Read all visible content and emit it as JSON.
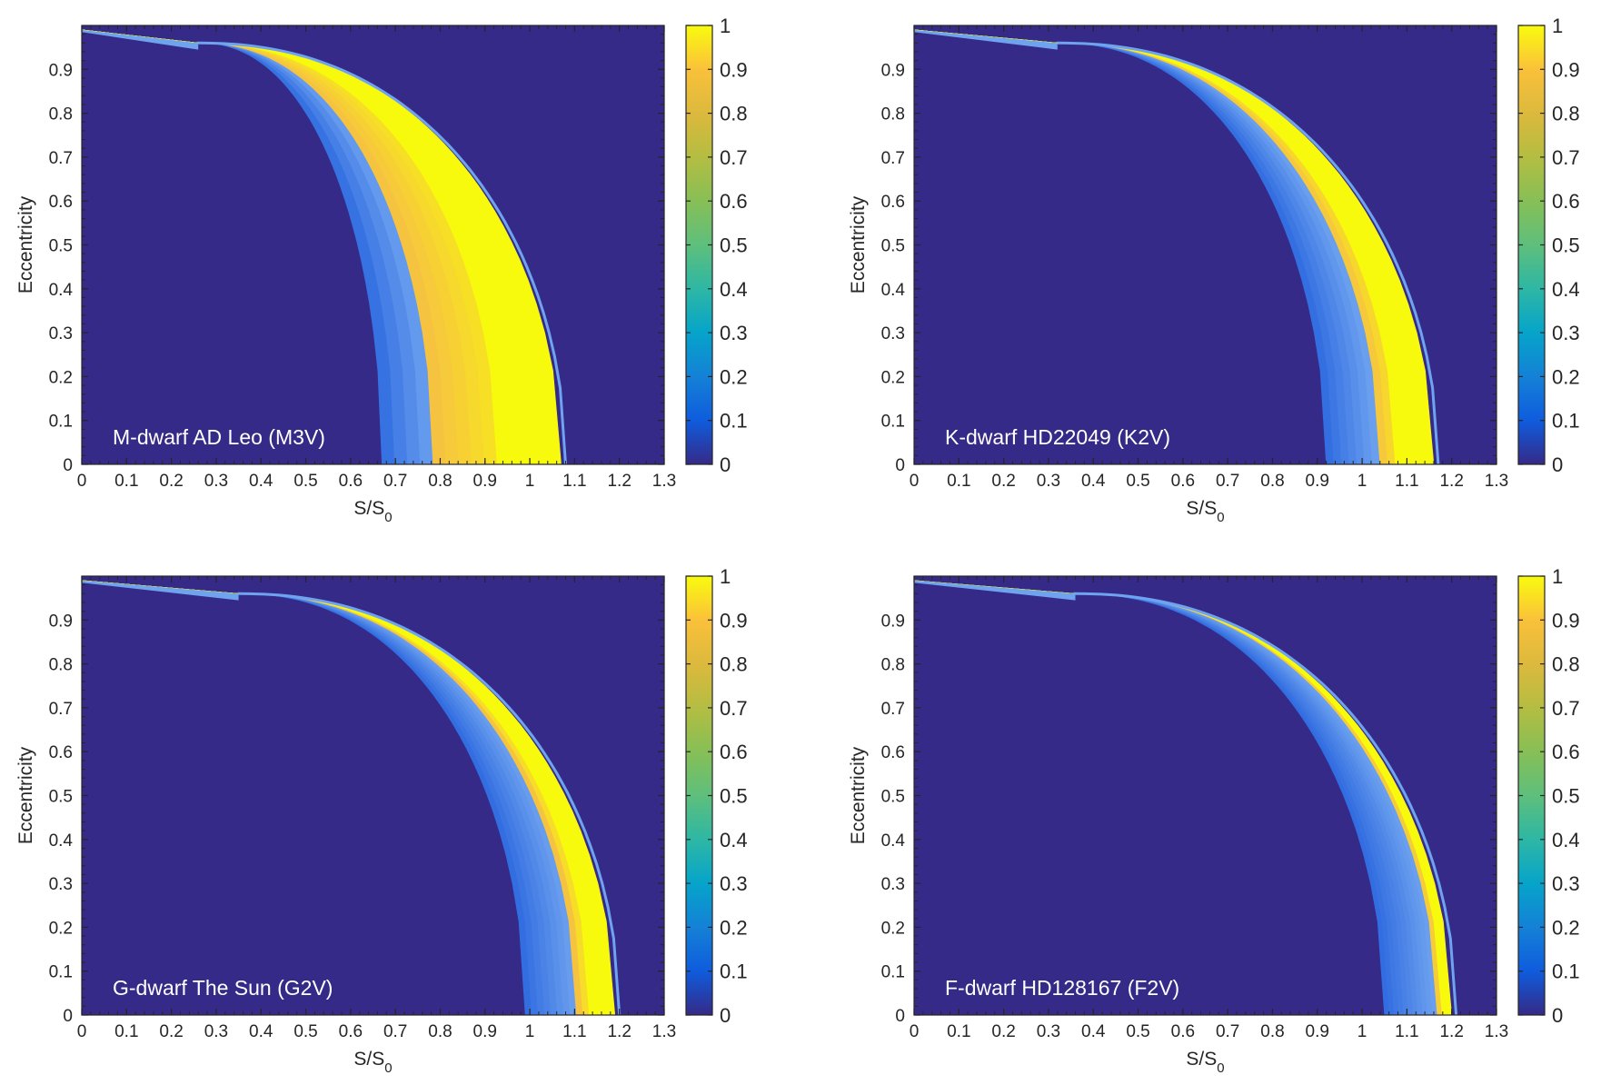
{
  "chart_data": [
    {
      "type": "heatmap",
      "annotation": "M-dwarf AD Leo (M3V)",
      "xlabel": "S/S",
      "xlabel_sub": "0",
      "ylabel": "Eccentricity",
      "xlim": [
        0,
        1.3
      ],
      "ylim": [
        0,
        1
      ],
      "xticks": [
        "0",
        "0.1",
        "0.2",
        "0.3",
        "0.4",
        "0.5",
        "0.6",
        "0.7",
        "0.8",
        "0.9",
        "1",
        "1.1",
        "1.2",
        "1.3"
      ],
      "yticks": [
        "0",
        "0.1",
        "0.2",
        "0.3",
        "0.4",
        "0.5",
        "0.6",
        "0.7",
        "0.8",
        "0.9"
      ],
      "colorbar": {
        "min": 0,
        "max": 1,
        "ticks": [
          "0",
          "0.1",
          "0.2",
          "0.3",
          "0.4",
          "0.5",
          "0.6",
          "0.7",
          "0.8",
          "0.9",
          "1"
        ]
      },
      "region": {
        "outer_s0": 1.07,
        "inner_s0": 0.79,
        "apex": [
          0.26,
          0.96
        ],
        "yellow_start_s0": 0.93
      }
    },
    {
      "type": "heatmap",
      "annotation": "K-dwarf HD22049 (K2V)",
      "xlabel": "S/S",
      "xlabel_sub": "0",
      "ylabel": "Eccentricity",
      "xlim": [
        0,
        1.3
      ],
      "ylim": [
        0,
        1
      ],
      "xticks": [
        "0",
        "0.1",
        "0.2",
        "0.3",
        "0.4",
        "0.5",
        "0.6",
        "0.7",
        "0.8",
        "0.9",
        "1",
        "1.1",
        "1.2",
        "1.3"
      ],
      "yticks": [
        "0",
        "0.1",
        "0.2",
        "0.3",
        "0.4",
        "0.5",
        "0.6",
        "0.7",
        "0.8",
        "0.9"
      ],
      "colorbar": {
        "min": 0,
        "max": 1,
        "ticks": [
          "0",
          "0.1",
          "0.2",
          "0.3",
          "0.4",
          "0.5",
          "0.6",
          "0.7",
          "0.8",
          "0.9",
          "1"
        ]
      },
      "region": {
        "outer_s0": 1.16,
        "inner_s0": 1.04,
        "apex": [
          0.32,
          0.96
        ],
        "yellow_start_s0": 1.08
      }
    },
    {
      "type": "heatmap",
      "annotation": "G-dwarf The Sun (G2V)",
      "xlabel": "S/S",
      "xlabel_sub": "0",
      "ylabel": "Eccentricity",
      "xlim": [
        0,
        1.3
      ],
      "ylim": [
        0,
        1
      ],
      "xticks": [
        "0",
        "0.1",
        "0.2",
        "0.3",
        "0.4",
        "0.5",
        "0.6",
        "0.7",
        "0.8",
        "0.9",
        "1",
        "1.1",
        "1.2",
        "1.3"
      ],
      "yticks": [
        "0",
        "0.1",
        "0.2",
        "0.3",
        "0.4",
        "0.5",
        "0.6",
        "0.7",
        "0.8",
        "0.9"
      ],
      "colorbar": {
        "min": 0,
        "max": 1,
        "ticks": [
          "0",
          "0.1",
          "0.2",
          "0.3",
          "0.4",
          "0.5",
          "0.6",
          "0.7",
          "0.8",
          "0.9",
          "1"
        ]
      },
      "region": {
        "outer_s0": 1.19,
        "inner_s0": 1.11,
        "apex": [
          0.35,
          0.96
        ],
        "yellow_start_s0": 1.13
      }
    },
    {
      "type": "heatmap",
      "annotation": "F-dwarf HD128167 (F2V)",
      "xlabel": "S/S",
      "xlabel_sub": "0",
      "ylabel": "Eccentricity",
      "xlim": [
        0,
        1.3
      ],
      "ylim": [
        0,
        1
      ],
      "xticks": [
        "0",
        "0.1",
        "0.2",
        "0.3",
        "0.4",
        "0.5",
        "0.6",
        "0.7",
        "0.8",
        "0.9",
        "1",
        "1.1",
        "1.2",
        "1.3"
      ],
      "yticks": [
        "0",
        "0.1",
        "0.2",
        "0.3",
        "0.4",
        "0.5",
        "0.6",
        "0.7",
        "0.8",
        "0.9"
      ],
      "colorbar": {
        "min": 0,
        "max": 1,
        "ticks": [
          "0",
          "0.1",
          "0.2",
          "0.3",
          "0.4",
          "0.5",
          "0.6",
          "0.7",
          "0.8",
          "0.9",
          "1"
        ]
      },
      "region": {
        "outer_s0": 1.2,
        "inner_s0": 1.17,
        "apex": [
          0.36,
          0.96
        ],
        "yellow_start_s0": 1.18
      }
    }
  ],
  "colors": {
    "background": "#352a87",
    "yellow": "#f8fa0d",
    "orange": "#f6c142",
    "cyan": "#42c1c8",
    "blue": "#2f6be0",
    "light_blue": "#6fa3ef"
  }
}
